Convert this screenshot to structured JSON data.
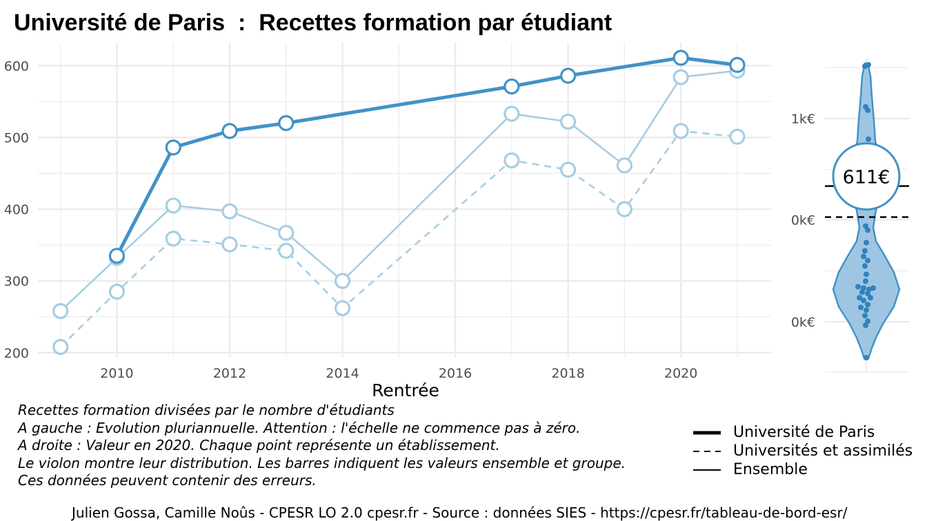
{
  "title": "Université de Paris  :  Recettes formation par étudiant",
  "chart_data": [
    {
      "type": "line",
      "xlabel": "Rentrée",
      "ylabel": "",
      "xlim": [
        2008.6,
        2021.6
      ],
      "ylim": [
        194,
        632
      ],
      "x_ticks": [
        2010,
        2012,
        2014,
        2016,
        2018,
        2020
      ],
      "y_ticks": [
        200,
        300,
        400,
        500,
        600
      ],
      "grid": true,
      "legend_position": "bottom-right",
      "series": [
        {
          "name": "Université de Paris",
          "style": "thick-solid",
          "x": [
            2010,
            2011,
            2012,
            2013,
            2017,
            2018,
            2020,
            2021
          ],
          "y": [
            335,
            486,
            509,
            520,
            571,
            586,
            611,
            601
          ]
        },
        {
          "name": "Universités et assimilés",
          "style": "dashed",
          "x": [
            2009,
            2010,
            2011,
            2012,
            2013,
            2014,
            2017,
            2018,
            2019,
            2020,
            2021
          ],
          "y": [
            208,
            285,
            359,
            351,
            342,
            262,
            468,
            455,
            400,
            509,
            501
          ]
        },
        {
          "name": "Ensemble",
          "style": "thin-solid",
          "x": [
            2009,
            2010,
            2011,
            2012,
            2013,
            2014,
            2017,
            2018,
            2019,
            2020,
            2021
          ],
          "y": [
            258,
            332,
            405,
            397,
            367,
            300,
            533,
            522,
            461,
            584,
            593
          ]
        }
      ]
    },
    {
      "type": "violin",
      "y_ticks": [
        "1k€",
        "0k€",
        "0k€"
      ],
      "highlight_label": "611€",
      "colors": {
        "fill": "#9ec6e3",
        "stroke": "#4292c6",
        "points": "#3182bd"
      }
    }
  ],
  "caption": [
    "Recettes formation divisées par le nombre d'étudiants",
    "A gauche : Evolution pluriannuelle. Attention : l'échelle ne commence pas à zéro.",
    "A droite : Valeur en 2020. Chaque point représente un établissement.",
    "Le violon montre leur distribution. Les barres indiquent les valeurs ensemble et groupe.",
    "Ces données peuvent contenir des erreurs."
  ],
  "legend": [
    "Université de Paris",
    "Universités et assimilés",
    "Ensemble"
  ],
  "source": "Julien Gossa, Camille Noûs - CPESR LO 2.0 cpesr.fr - Source : données SIES - https://cpesr.fr/tableau-de-bord-esr/",
  "colors": {
    "main": "#4292c6",
    "light": "#a6cde4",
    "grid": "#ebebeb"
  }
}
